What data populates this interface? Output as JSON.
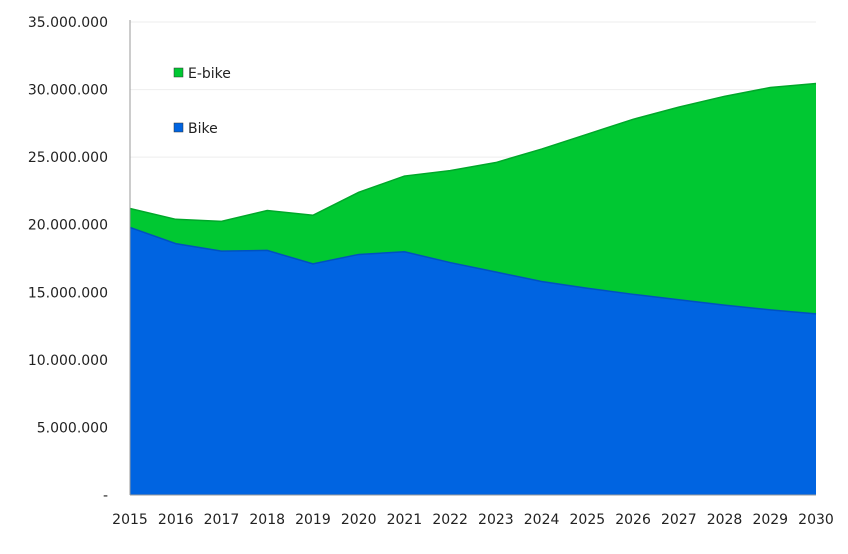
{
  "chart_data": {
    "type": "area",
    "stacked": true,
    "title": "",
    "xlabel": "",
    "ylabel": "",
    "x": [
      2015,
      2016,
      2017,
      2018,
      2019,
      2020,
      2021,
      2022,
      2023,
      2024,
      2025,
      2026,
      2027,
      2028,
      2029,
      2030
    ],
    "x_tick_labels": [
      "2015",
      "2016",
      "2017",
      "2018",
      "2019",
      "2020",
      "2021",
      "2022",
      "2023",
      "2024",
      "2025",
      "2026",
      "2027",
      "2028",
      "2029",
      "2030"
    ],
    "ylim": [
      0,
      35000000
    ],
    "y_ticks": [
      0,
      5000000,
      10000000,
      15000000,
      20000000,
      25000000,
      30000000,
      35000000
    ],
    "y_tick_labels": [
      "-",
      "5.000.000",
      "10.000.000",
      "15.000.000",
      "20.000.000",
      "25.000.000",
      "30.000.000",
      "35.000.000"
    ],
    "grid": true,
    "legend_position": "top-left",
    "series": [
      {
        "name": "Bike",
        "color": "#0064e1",
        "values": [
          19800000,
          18600000,
          18050000,
          18100000,
          17100000,
          17800000,
          18000000,
          17200000,
          16500000,
          15800000,
          15300000,
          14850000,
          14450000,
          14050000,
          13700000,
          13400000
        ]
      },
      {
        "name": "E-bike",
        "color": "#00c832",
        "values": [
          1400000,
          1800000,
          2200000,
          2950000,
          3600000,
          4600000,
          5600000,
          6800000,
          8100000,
          9800000,
          11400000,
          12950000,
          14250000,
          15450000,
          16450000,
          17050000
        ]
      }
    ],
    "legend": [
      {
        "name": "E-bike",
        "color": "#00c832"
      },
      {
        "name": "Bike",
        "color": "#0064e1"
      }
    ]
  }
}
